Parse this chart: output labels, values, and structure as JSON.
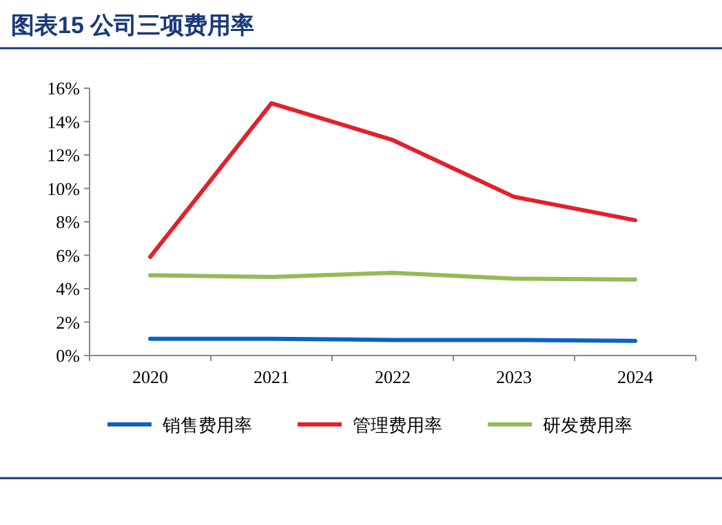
{
  "chart_data": {
    "type": "line",
    "title": "图表15 公司三项费用率",
    "categories": [
      "2020",
      "2021",
      "2022",
      "2023",
      "2024"
    ],
    "series": [
      {
        "name": "销售费用率",
        "color": "#0a62c2",
        "values": [
          1.0,
          1.0,
          0.93,
          0.93,
          0.88
        ]
      },
      {
        "name": "管理费用率",
        "color": "#e3202c",
        "values": [
          5.9,
          15.1,
          12.9,
          9.5,
          8.1
        ]
      },
      {
        "name": "研发费用率",
        "color": "#94bb56",
        "values": [
          4.8,
          4.7,
          4.95,
          4.6,
          4.55
        ]
      }
    ],
    "ylim": [
      0,
      16
    ],
    "yticks": [
      {
        "value": 0,
        "label": "0%"
      },
      {
        "value": 2,
        "label": "2%"
      },
      {
        "value": 4,
        "label": "4%"
      },
      {
        "value": 6,
        "label": "6%"
      },
      {
        "value": 8,
        "label": "8%"
      },
      {
        "value": 10,
        "label": "10%"
      },
      {
        "value": 12,
        "label": "12%"
      },
      {
        "value": 14,
        "label": "14%"
      },
      {
        "value": 16,
        "label": "16%"
      }
    ],
    "legend": "bottom",
    "grid": false,
    "marker": "none",
    "line_style": "solid"
  }
}
